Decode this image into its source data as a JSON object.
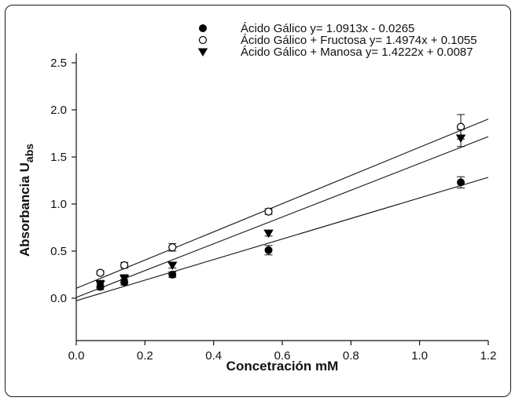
{
  "chart_data": {
    "type": "scatter",
    "title": "",
    "xlabel": "Concetración mM",
    "ylabel_main": "Absorbancia U",
    "ylabel_sub": "abs",
    "xlim": [
      0.0,
      1.2
    ],
    "ylim": [
      -0.45,
      2.6
    ],
    "x_ticks": [
      "0.0",
      "0.2",
      "0.4",
      "0.6",
      "0.8",
      "1.0",
      "1.2"
    ],
    "y_ticks": [
      "0.0",
      "0.5",
      "1.0",
      "1.5",
      "2.0",
      "2.5"
    ],
    "grid": false,
    "legend_position": "top",
    "series": [
      {
        "name": "Ácido Gálico y= 1.0913x - 0.0265",
        "marker": "filled-circle",
        "color": "#000000",
        "x": [
          0.07,
          0.14,
          0.28,
          0.56,
          1.12
        ],
        "y": [
          0.12,
          0.17,
          0.25,
          0.51,
          1.23
        ],
        "err": [
          0.03,
          0.03,
          0.03,
          0.05,
          0.06
        ],
        "fit": {
          "slope": 1.0913,
          "intercept": -0.0265
        }
      },
      {
        "name": "Ácido Gálico + Fructosa  y= 1.4974x + 0.1055",
        "marker": "open-circle",
        "color": "#000000",
        "x": [
          0.07,
          0.14,
          0.28,
          0.56,
          1.12
        ],
        "y": [
          0.27,
          0.35,
          0.54,
          0.92,
          1.82
        ],
        "err": [
          0.02,
          0.03,
          0.04,
          0.03,
          0.13
        ],
        "fit": {
          "slope": 1.4974,
          "intercept": 0.1055
        }
      },
      {
        "name": "Ácido Gálico + Manosa y= 1.4222x + 0.0087",
        "marker": "filled-triangle-down",
        "color": "#000000",
        "x": [
          0.07,
          0.14,
          0.28,
          0.56,
          1.12
        ],
        "y": [
          0.15,
          0.21,
          0.35,
          0.69,
          1.7
        ],
        "err": [
          0.04,
          0.04,
          0.03,
          0.03,
          0.09
        ],
        "fit": {
          "slope": 1.4222,
          "intercept": 0.0087
        }
      }
    ]
  }
}
